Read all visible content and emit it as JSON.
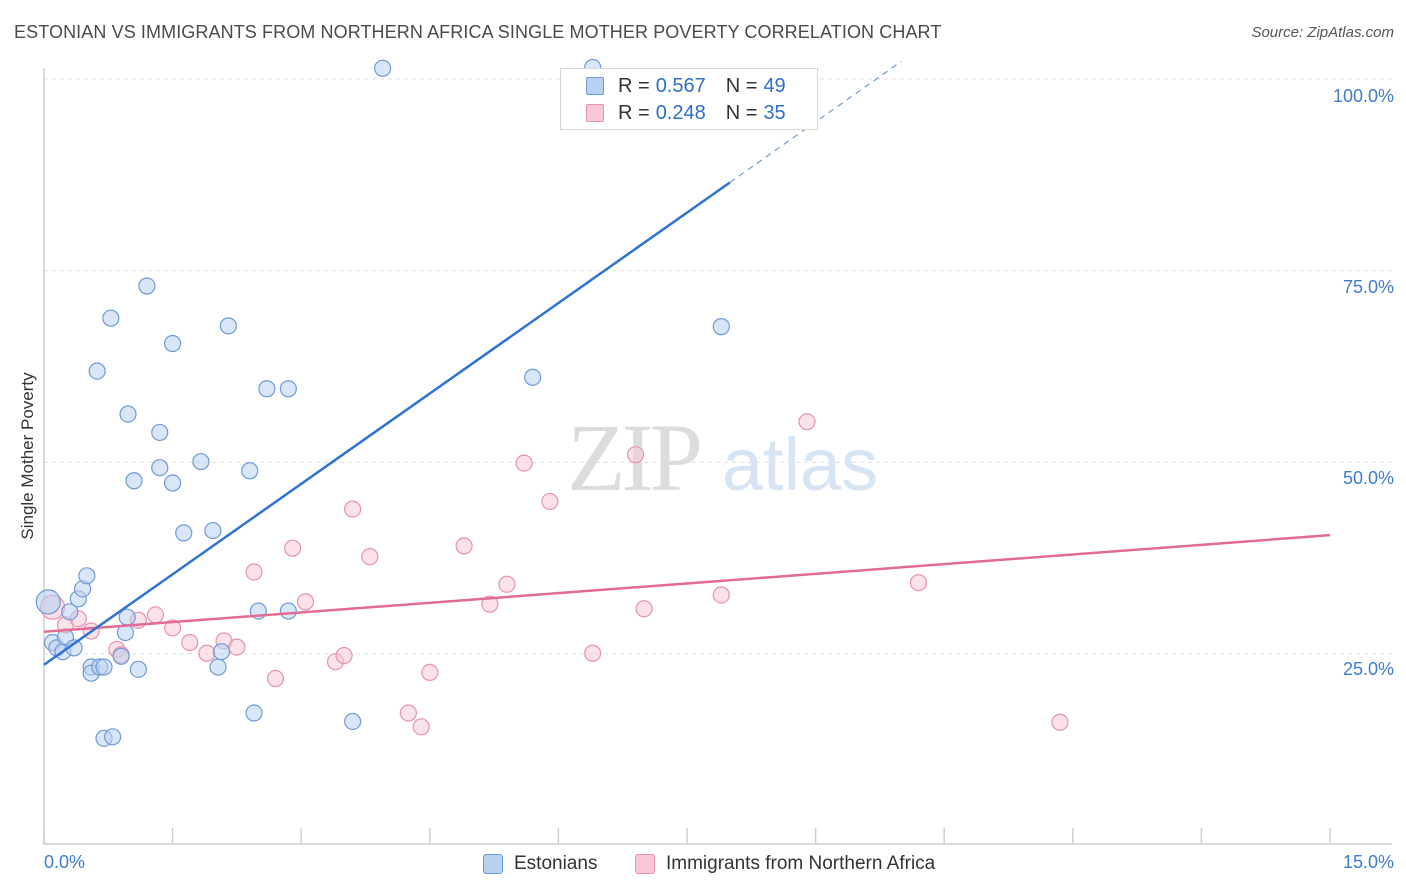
{
  "title": "ESTONIAN VS IMMIGRANTS FROM NORTHERN AFRICA SINGLE MOTHER POVERTY CORRELATION CHART",
  "source": "Source: ZipAtlas.com",
  "watermark": {
    "zip": "ZIP",
    "atlas": "atlas"
  },
  "colors": {
    "blue_fill": "#b9d1f1",
    "blue_stroke": "#6f9ad6",
    "blue_line": "#2f72d4",
    "pink_fill": "#f8c8d6",
    "pink_stroke": "#e693ad",
    "pink_line": "#e26b94",
    "tick_text": "#3f7ccf",
    "grid": "#dedede"
  },
  "legend": {
    "rows": [
      {
        "r_label": "R =",
        "r_value": "0.567",
        "n_label": "N =",
        "n_value": "49"
      },
      {
        "r_label": "R =",
        "r_value": "0.248",
        "n_label": "N =",
        "n_value": "35"
      }
    ]
  },
  "bottom_legend": {
    "estonians": "Estonians",
    "immigrants": "Immigrants from Northern Africa"
  },
  "axes": {
    "ylabel": "Single Mother Poverty",
    "x_min_label": "0.0%",
    "x_max_label": "15.0%",
    "y_ticks": [
      "100.0%",
      "75.0%",
      "50.0%",
      "25.0%"
    ]
  },
  "chart_data": {
    "type": "scatter",
    "title": "ESTONIAN VS IMMIGRANTS FROM NORTHERN AFRICA SINGLE MOTHER POVERTY CORRELATION CHART",
    "xlabel": "",
    "ylabel": "Single Mother Poverty",
    "xlim": [
      0,
      15
    ],
    "ylim": [
      0,
      100
    ],
    "y_gridlines": [
      25,
      50,
      75,
      100
    ],
    "legend_position": "top-center",
    "series": [
      {
        "name": "Estonians",
        "r": 0.567,
        "n": 49,
        "trend": {
          "x": [
            0.0,
            8.0
          ],
          "y": [
            23.6,
            86.5
          ],
          "dashed_to": [
            10.0,
            102.3
          ]
        },
        "points": [
          [
            0.05,
            31.8,
            "big"
          ],
          [
            0.1,
            26.5
          ],
          [
            0.15,
            25.8
          ],
          [
            0.22,
            25.3
          ],
          [
            0.25,
            27.2
          ],
          [
            0.3,
            30.5
          ],
          [
            0.35,
            25.8
          ],
          [
            0.4,
            32.2
          ],
          [
            0.45,
            33.5
          ],
          [
            0.5,
            35.2
          ],
          [
            0.55,
            23.3
          ],
          [
            0.55,
            22.5
          ],
          [
            0.65,
            23.3
          ],
          [
            0.7,
            23.3
          ],
          [
            0.7,
            14.0
          ],
          [
            0.8,
            14.2
          ],
          [
            0.9,
            24.7
          ],
          [
            0.95,
            27.8
          ],
          [
            0.97,
            29.8
          ],
          [
            1.1,
            23.0
          ],
          [
            0.62,
            61.9
          ],
          [
            0.78,
            68.8
          ],
          [
            0.98,
            56.3
          ],
          [
            1.2,
            73.0
          ],
          [
            1.05,
            47.6
          ],
          [
            1.35,
            49.3
          ],
          [
            1.35,
            53.9
          ],
          [
            1.5,
            65.5
          ],
          [
            1.5,
            47.3
          ],
          [
            1.63,
            40.8
          ],
          [
            1.83,
            50.1
          ],
          [
            1.97,
            41.1
          ],
          [
            2.03,
            23.3
          ],
          [
            2.07,
            25.3
          ],
          [
            2.15,
            67.8
          ],
          [
            2.4,
            48.9
          ],
          [
            2.45,
            17.3
          ],
          [
            2.5,
            30.6
          ],
          [
            2.6,
            59.6
          ],
          [
            2.85,
            59.6
          ],
          [
            2.85,
            30.6
          ],
          [
            3.6,
            16.2
          ],
          [
            3.95,
            101.4
          ],
          [
            5.7,
            61.1
          ],
          [
            7.9,
            67.7
          ],
          [
            6.4,
            101.5
          ]
        ]
      },
      {
        "name": "Immigrants from Northern Africa",
        "r": 0.248,
        "n": 35,
        "trend": {
          "x": [
            0.0,
            15.0
          ],
          "y": [
            27.9,
            40.5
          ]
        },
        "points": [
          [
            0.1,
            31.1,
            "big"
          ],
          [
            0.25,
            28.8
          ],
          [
            0.4,
            29.6
          ],
          [
            0.55,
            28.0
          ],
          [
            0.85,
            25.6
          ],
          [
            0.9,
            24.9
          ],
          [
            1.1,
            29.4
          ],
          [
            1.3,
            30.1
          ],
          [
            1.5,
            28.4
          ],
          [
            1.7,
            26.5
          ],
          [
            1.9,
            25.1
          ],
          [
            2.1,
            26.7
          ],
          [
            2.25,
            25.9
          ],
          [
            2.45,
            35.7
          ],
          [
            2.7,
            21.8
          ],
          [
            2.9,
            38.8
          ],
          [
            3.05,
            31.8
          ],
          [
            3.4,
            24.0
          ],
          [
            3.5,
            24.8
          ],
          [
            3.6,
            43.9
          ],
          [
            3.8,
            37.7
          ],
          [
            4.25,
            17.3
          ],
          [
            4.4,
            15.5
          ],
          [
            4.5,
            22.6
          ],
          [
            4.9,
            39.1
          ],
          [
            5.2,
            31.5
          ],
          [
            5.4,
            34.1
          ],
          [
            5.6,
            49.9
          ],
          [
            5.9,
            44.9
          ],
          [
            6.4,
            25.1
          ],
          [
            6.9,
            51.0
          ],
          [
            7.0,
            30.9
          ],
          [
            7.9,
            32.7
          ],
          [
            8.9,
            55.3
          ],
          [
            10.2,
            34.3
          ],
          [
            11.85,
            16.1
          ]
        ]
      }
    ]
  }
}
